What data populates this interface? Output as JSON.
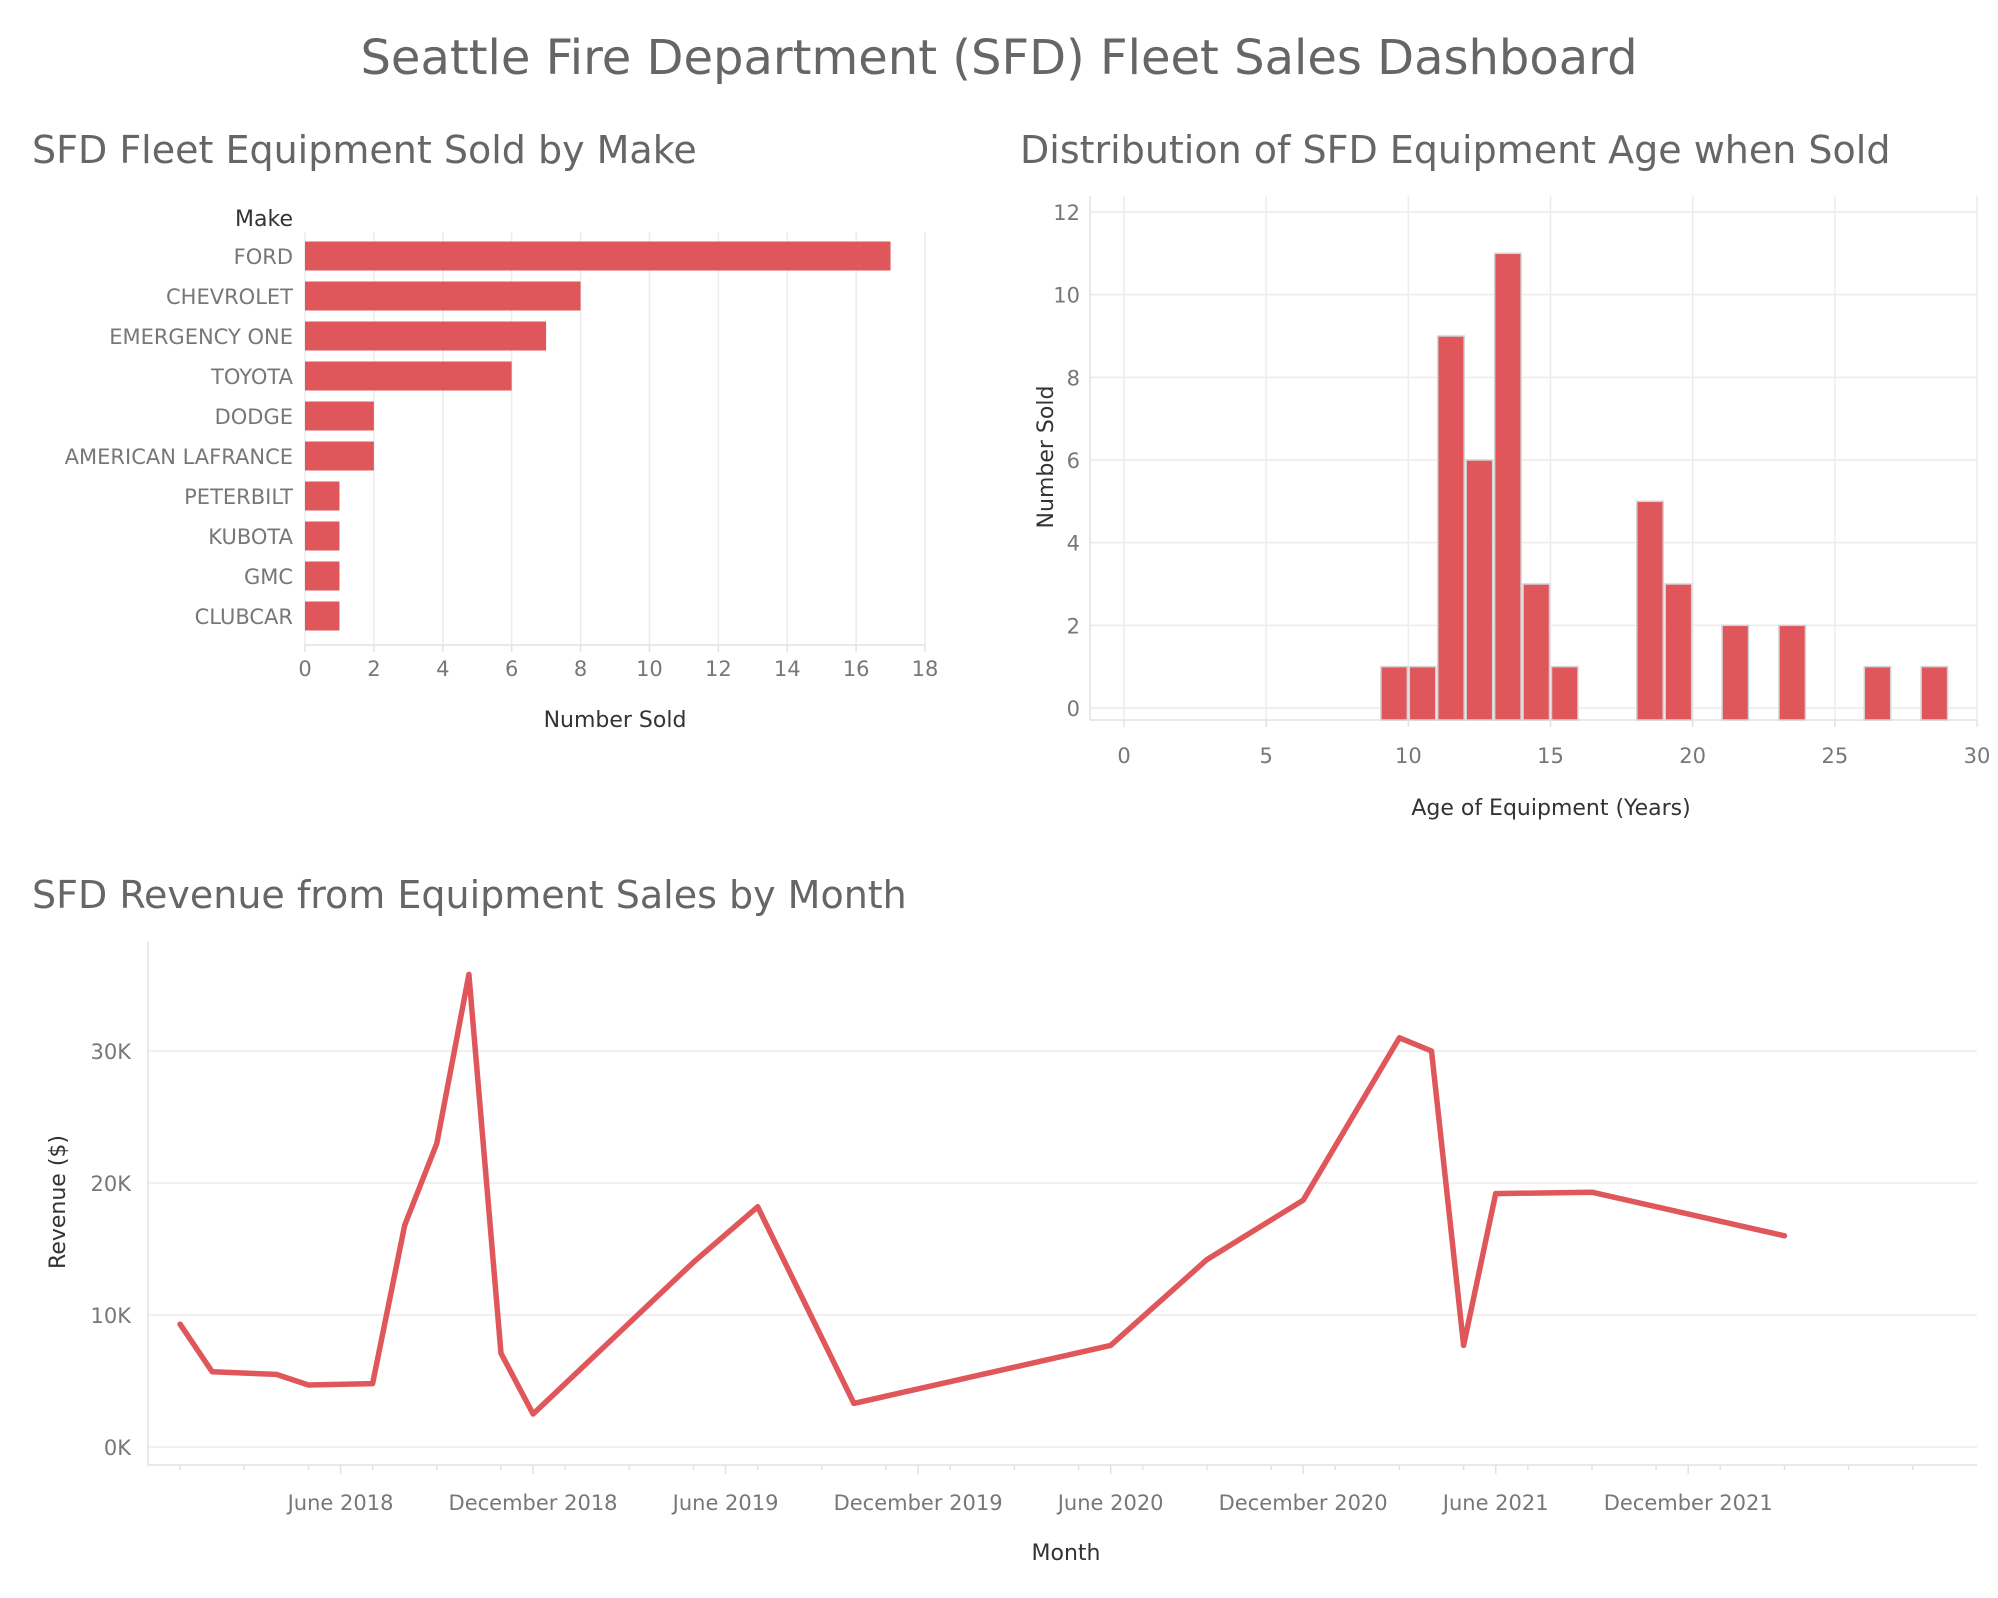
{
  "title": "Seattle Fire Department (SFD) Fleet Sales Dashboard",
  "accent_color": "#e0575b",
  "chart_data": [
    {
      "type": "bar",
      "orientation": "horizontal",
      "title": "SFD Fleet Equipment Sold by Make",
      "category_header": "Make",
      "xlabel": "Number Sold",
      "xlim": [
        0,
        18
      ],
      "xticks": [
        0,
        2,
        4,
        6,
        8,
        10,
        12,
        14,
        16,
        18
      ],
      "categories": [
        "FORD",
        "CHEVROLET",
        "EMERGENCY ONE",
        "TOYOTA",
        "DODGE",
        "AMERICAN LAFRANCE",
        "PETERBILT",
        "KUBOTA",
        "GMC",
        "CLUBCAR"
      ],
      "values": [
        17,
        8,
        7,
        6,
        2,
        2,
        1,
        1,
        1,
        1
      ],
      "grid": true
    },
    {
      "type": "bar",
      "subtype": "histogram",
      "title": "Distribution of SFD Equipment Age when Sold",
      "xlabel": "Age of Equipment (Years)",
      "ylabel": "Number Sold",
      "xlim": [
        0,
        30
      ],
      "ylim": [
        0,
        12
      ],
      "xticks": [
        0,
        5,
        10,
        15,
        20,
        25,
        30
      ],
      "yticks": [
        0,
        2,
        4,
        6,
        8,
        10,
        12
      ],
      "bin_width": 1,
      "bins": [
        {
          "start": 9,
          "count": 1
        },
        {
          "start": 10,
          "count": 1
        },
        {
          "start": 11,
          "count": 9
        },
        {
          "start": 12,
          "count": 6
        },
        {
          "start": 13,
          "count": 11
        },
        {
          "start": 14,
          "count": 3
        },
        {
          "start": 15,
          "count": 1
        },
        {
          "start": 18,
          "count": 5
        },
        {
          "start": 19,
          "count": 3
        },
        {
          "start": 21,
          "count": 2
        },
        {
          "start": 23,
          "count": 2
        },
        {
          "start": 26,
          "count": 1
        },
        {
          "start": 28,
          "count": 1
        }
      ],
      "grid": true
    },
    {
      "type": "line",
      "title": "SFD Revenue from Equipment Sales by Month",
      "xlabel": "Month",
      "ylabel": "Revenue ($)",
      "ylim": [
        0,
        38000
      ],
      "yticks": [
        0,
        10000,
        20000,
        30000
      ],
      "ytick_labels": [
        "0K",
        "10K",
        "20K",
        "30K"
      ],
      "xlim": [
        "2017-12-01",
        "2022-09-01"
      ],
      "xticks": [
        "2018-06-01",
        "2018-12-01",
        "2019-06-01",
        "2019-12-01",
        "2020-06-01",
        "2020-12-01",
        "2021-06-01",
        "2021-12-01"
      ],
      "xtick_labels": [
        "June 2018",
        "December 2018",
        "June 2019",
        "December 2019",
        "June 2020",
        "December 2020",
        "June 2021",
        "December 2021"
      ],
      "points": [
        {
          "x": "2018-01-01",
          "y": 9300
        },
        {
          "x": "2018-02-01",
          "y": 5700
        },
        {
          "x": "2018-04-01",
          "y": 5500
        },
        {
          "x": "2018-05-01",
          "y": 4700
        },
        {
          "x": "2018-07-01",
          "y": 4800
        },
        {
          "x": "2018-08-01",
          "y": 16800
        },
        {
          "x": "2018-09-01",
          "y": 23000
        },
        {
          "x": "2018-10-01",
          "y": 35800
        },
        {
          "x": "2018-11-01",
          "y": 7100
        },
        {
          "x": "2018-12-01",
          "y": 2500
        },
        {
          "x": "2019-05-01",
          "y": 14000
        },
        {
          "x": "2019-07-01",
          "y": 18200
        },
        {
          "x": "2019-10-01",
          "y": 3300
        },
        {
          "x": "2020-06-01",
          "y": 7700
        },
        {
          "x": "2020-09-01",
          "y": 14200
        },
        {
          "x": "2020-12-01",
          "y": 18700
        },
        {
          "x": "2021-03-01",
          "y": 31000
        },
        {
          "x": "2021-04-01",
          "y": 30000
        },
        {
          "x": "2021-05-01",
          "y": 7700
        },
        {
          "x": "2021-06-01",
          "y": 19200
        },
        {
          "x": "2021-09-01",
          "y": 19300
        },
        {
          "x": "2022-03-01",
          "y": 16000
        }
      ],
      "grid": true
    }
  ]
}
